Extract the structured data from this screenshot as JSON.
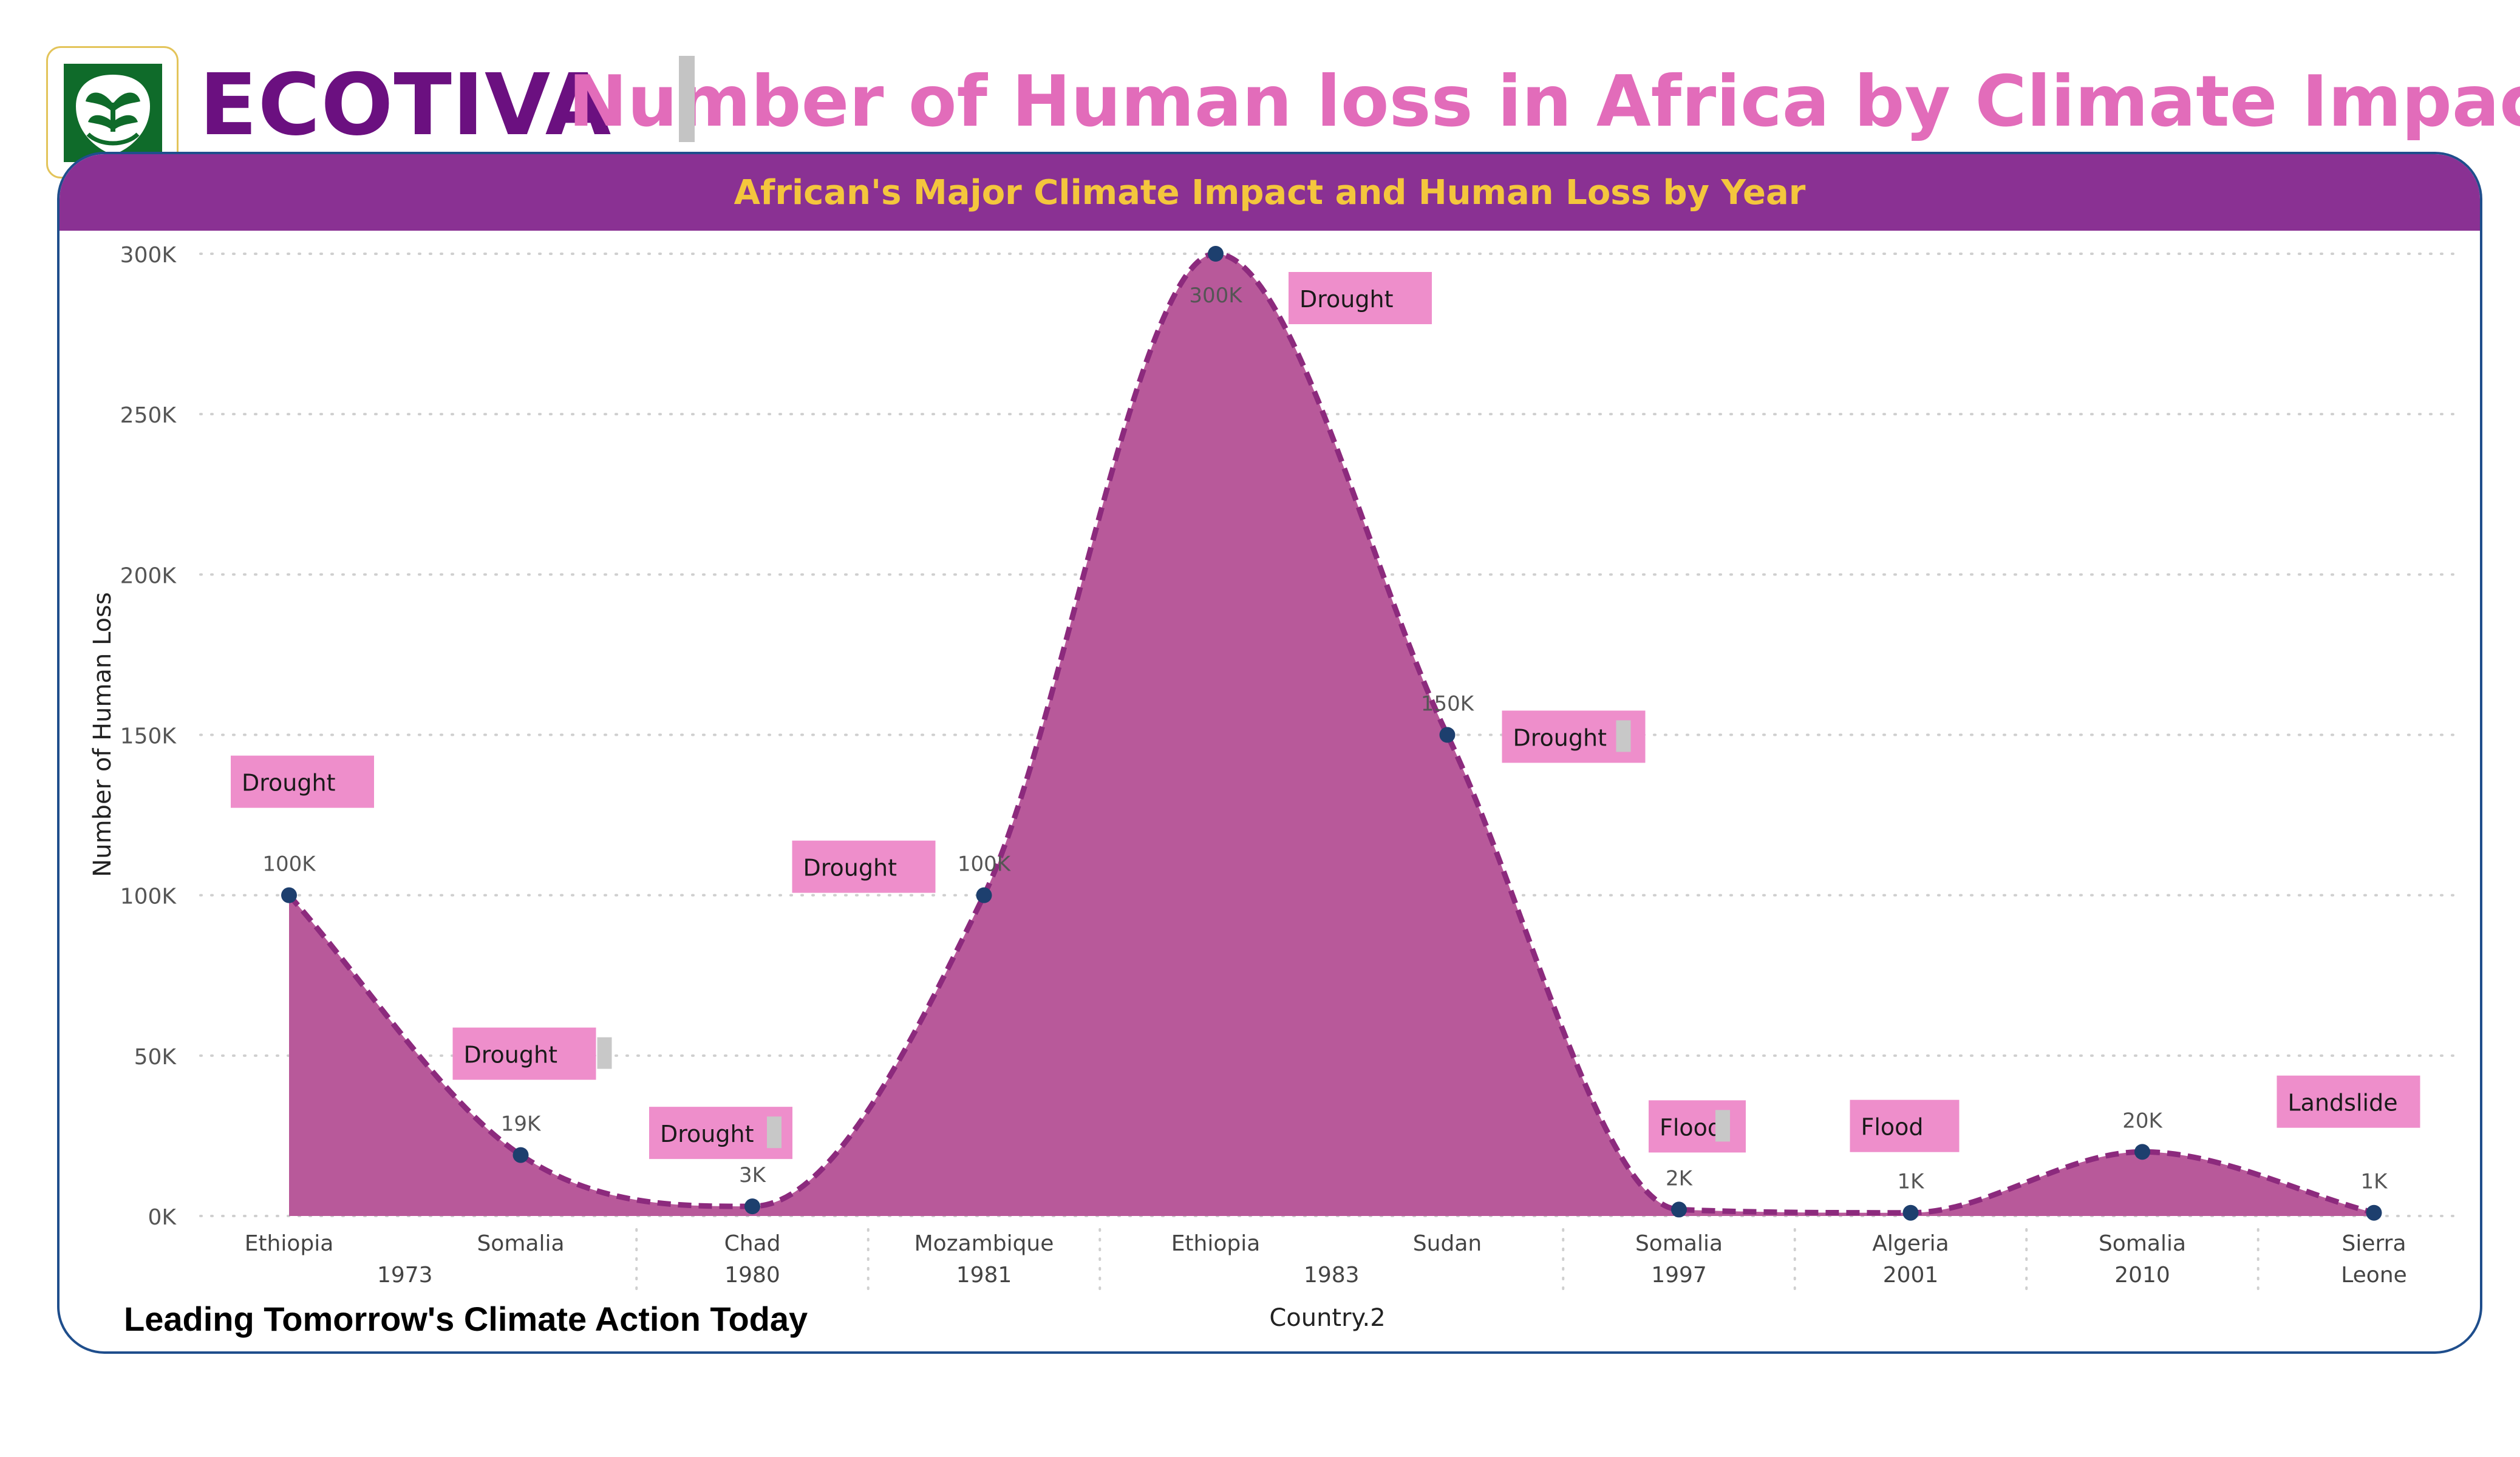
{
  "brand": {
    "name": "ECOTIVA",
    "logo_icon": "leaf-shield-icon",
    "tagline": "Leading Tomorrow's Climate Action Today"
  },
  "colors": {
    "brand": "#6b1080",
    "title": "#e26cba",
    "header_bg": "#8a3193",
    "subtitle": "#f4c63d",
    "area": "#b8599a",
    "line": "#8c2a7d",
    "marker": "#1d3f6e",
    "label_box": "#ee8ecb",
    "border": "#1f4e8c"
  },
  "chart_data": {
    "type": "area",
    "title": "Number of Human loss in Africa by Climate Impact",
    "subtitle": "African's Major Climate Impact and Human Loss by Year",
    "xlabel": "Country.2",
    "ylabel": "Number of Human Loss",
    "ylim": [
      0,
      300000
    ],
    "y_ticks": [
      "0K",
      "50K",
      "100K",
      "150K",
      "200K",
      "250K",
      "300K"
    ],
    "grid": "horizontal-dotted",
    "points": [
      {
        "country": "Ethiopia",
        "value": 100000,
        "value_label": "100K",
        "impact": "Drought"
      },
      {
        "country": "Somalia",
        "value": 19000,
        "value_label": "19K",
        "impact": "Drought"
      },
      {
        "country": "Chad",
        "value": 3000,
        "value_label": "3K",
        "impact": "Drought"
      },
      {
        "country": "Mozambique",
        "value": 100000,
        "value_label": "100K",
        "impact": "Drought"
      },
      {
        "country": "Ethiopia",
        "value": 300000,
        "value_label": "300K",
        "impact": "Drought"
      },
      {
        "country": "Sudan",
        "value": 150000,
        "value_label": "150K",
        "impact": "Drought"
      },
      {
        "country": "Somalia",
        "value": 2000,
        "value_label": "2K",
        "impact": "Flood"
      },
      {
        "country": "Algeria",
        "value": 1000,
        "value_label": "1K",
        "impact": "Flood"
      },
      {
        "country": "Somalia",
        "value": 20000,
        "value_label": "20K",
        "impact": ""
      },
      {
        "country": "Sierra Leone",
        "value": 1000,
        "value_label": "1K",
        "impact": "Landslide"
      }
    ],
    "year_groups": [
      {
        "year": "1973",
        "from": 0,
        "to": 1
      },
      {
        "year": "1980",
        "from": 2,
        "to": 2
      },
      {
        "year": "1981",
        "from": 3,
        "to": 3
      },
      {
        "year": "1983",
        "from": 4,
        "to": 5
      },
      {
        "year": "1997",
        "from": 6,
        "to": 6
      },
      {
        "year": "2001",
        "from": 7,
        "to": 7
      },
      {
        "year": "2010",
        "from": 8,
        "to": 8
      },
      {
        "year": "",
        "from": 9,
        "to": 9
      }
    ]
  }
}
